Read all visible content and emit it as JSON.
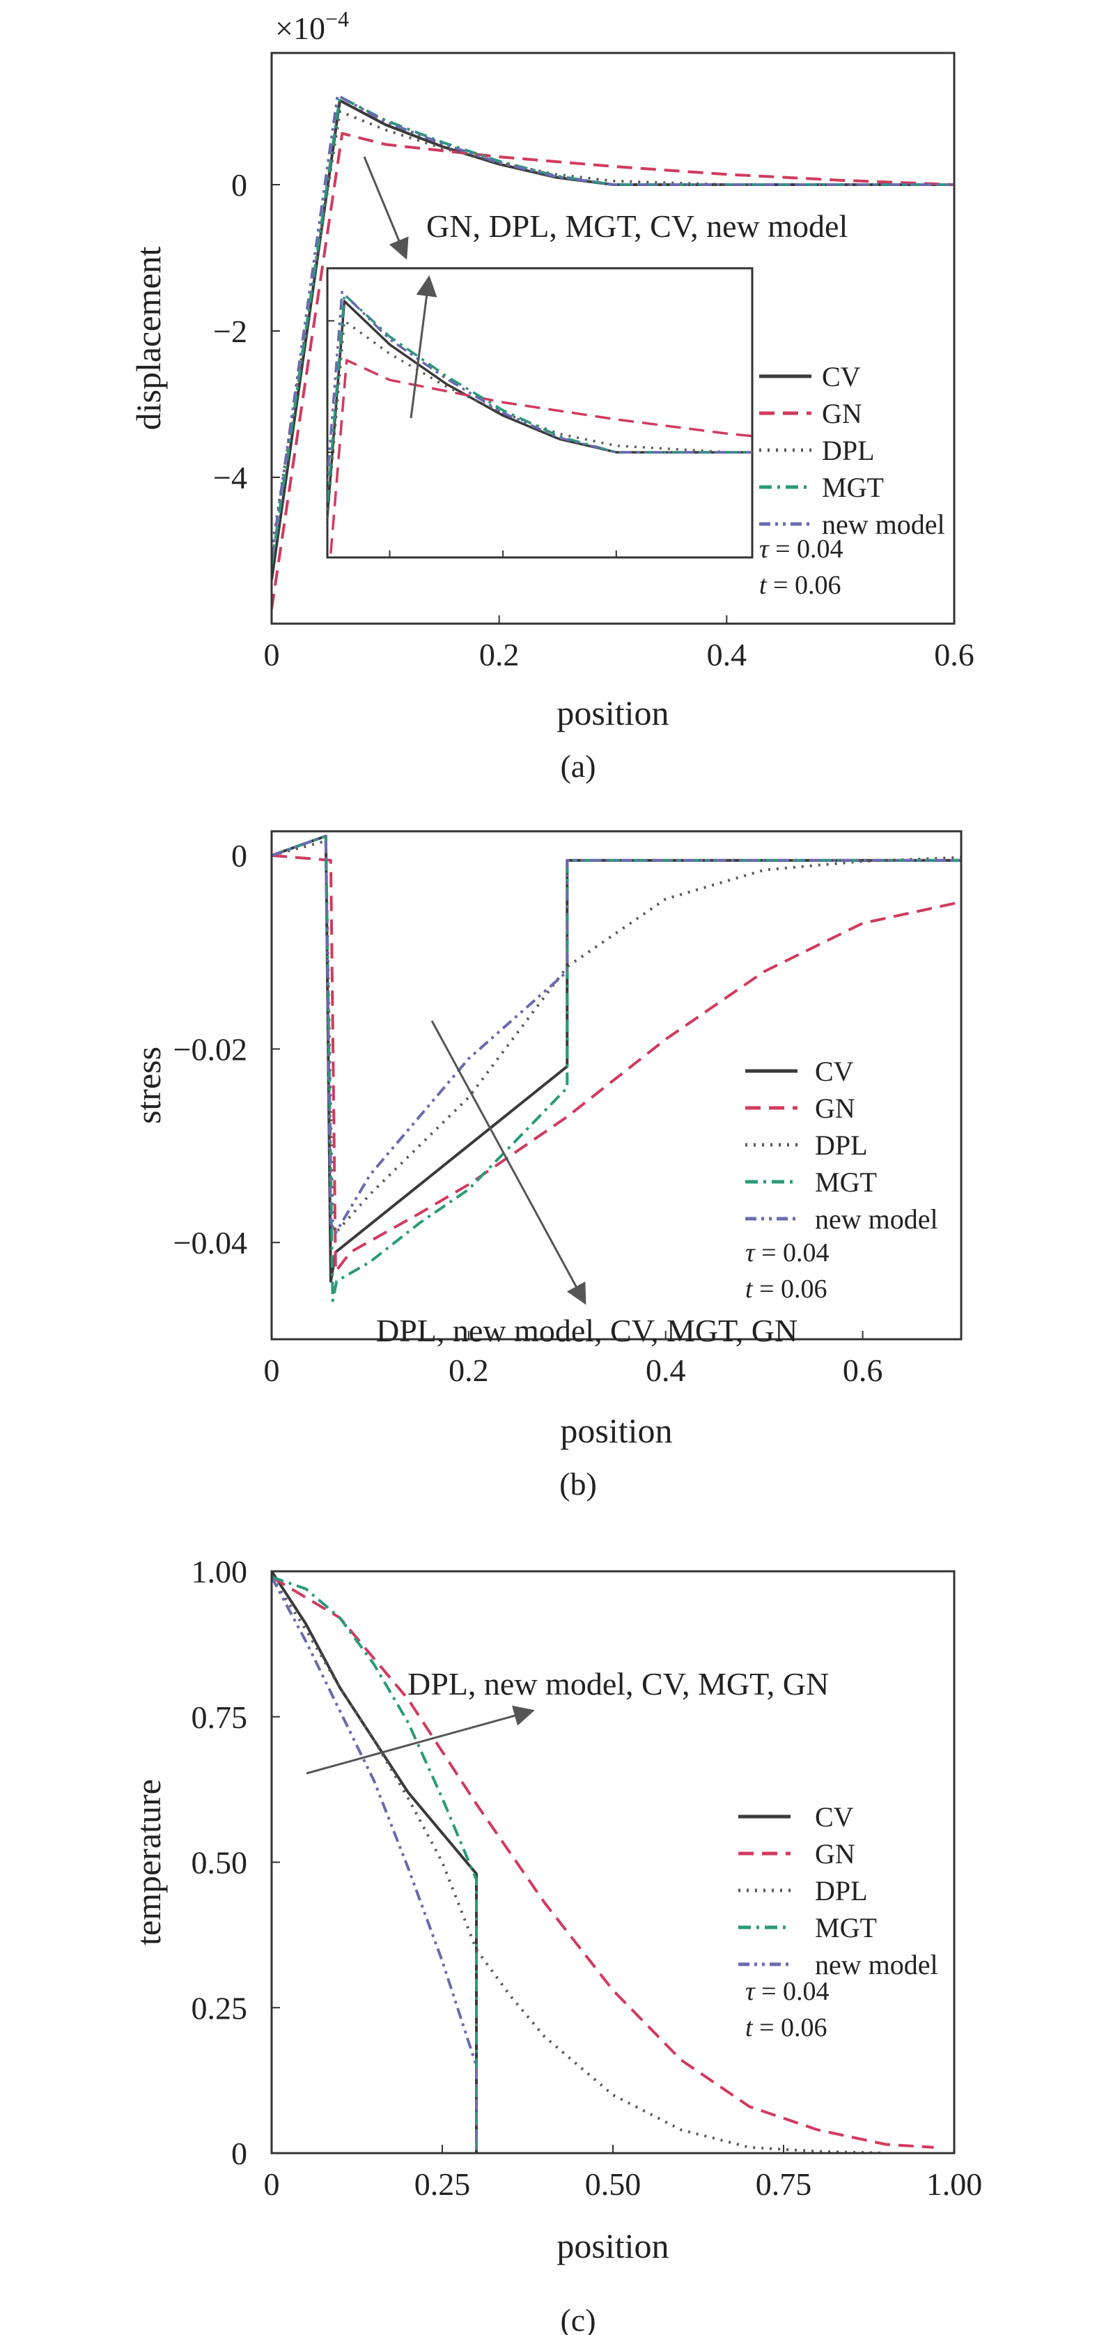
{
  "colors": {
    "CV": "#3a3a3a",
    "GN": "#d13a5e",
    "DPL": "#5a5a5a",
    "MGT": "#2a9a78",
    "new model": "#6a6ab0",
    "frame": "#333333",
    "arrow": "#555555"
  },
  "chart_data": [
    {
      "type": "line",
      "panel_label": "(a)",
      "xlabel": "position",
      "ylabel": "displacement",
      "y_multiplier_label": "×10",
      "y_multiplier_exponent": "−4",
      "xlim": [
        0,
        0.6
      ],
      "ylim": [
        -6.0,
        1.8
      ],
      "x_ticks": [
        0,
        0.2,
        0.4,
        0.6
      ],
      "x_tick_labels": [
        "0",
        "0.2",
        "0.4",
        "0.6"
      ],
      "y_ticks": [
        -4,
        -2,
        0
      ],
      "y_tick_labels": [
        "−4",
        "−2",
        "0"
      ],
      "legend": [
        "CV",
        "GN",
        "DPL",
        "MGT",
        "new model"
      ],
      "params": [
        "τ = 0.04",
        "t = 0.06"
      ],
      "annotation": "GN, DPL, MGT, CV, new model",
      "series": [
        {
          "name": "CV",
          "style": "solid",
          "x": [
            0,
            0.06,
            0.1,
            0.15,
            0.2,
            0.25,
            0.3,
            0.4,
            0.5,
            0.6
          ],
          "y": [
            -5.4,
            1.15,
            0.82,
            0.52,
            0.28,
            0.1,
            0.0,
            0.0,
            0.0,
            0.0
          ]
        },
        {
          "name": "GN",
          "style": "dash",
          "x": [
            0,
            0.062,
            0.1,
            0.2,
            0.3,
            0.4,
            0.5,
            0.6
          ],
          "y": [
            -5.8,
            0.7,
            0.55,
            0.38,
            0.25,
            0.14,
            0.06,
            0.0
          ]
        },
        {
          "name": "DPL",
          "style": "dot",
          "x": [
            0,
            0.06,
            0.1,
            0.15,
            0.2,
            0.25,
            0.3,
            0.4,
            0.5,
            0.6
          ],
          "y": [
            -5.0,
            1.0,
            0.75,
            0.5,
            0.3,
            0.14,
            0.05,
            0.0,
            0.0,
            0.0
          ]
        },
        {
          "name": "MGT",
          "style": "dashdot",
          "x": [
            0,
            0.06,
            0.1,
            0.15,
            0.2,
            0.25,
            0.3,
            0.4,
            0.5,
            0.6
          ],
          "y": [
            -5.2,
            1.2,
            0.88,
            0.58,
            0.32,
            0.12,
            0.0,
            0.0,
            0.0,
            0.0
          ]
        },
        {
          "name": "new model",
          "style": "dashdotdot",
          "x": [
            0,
            0.058,
            0.1,
            0.15,
            0.2,
            0.25,
            0.3,
            0.4,
            0.5,
            0.6
          ],
          "y": [
            -5.1,
            1.22,
            0.86,
            0.56,
            0.3,
            0.11,
            0.0,
            0.0,
            0.0,
            0.0
          ]
        }
      ]
    },
    {
      "type": "line",
      "panel_label": "(b)",
      "xlabel": "position",
      "ylabel": "stress",
      "xlim": [
        0,
        0.7
      ],
      "ylim": [
        -0.05,
        0.0025
      ],
      "x_ticks": [
        0,
        0.2,
        0.4,
        0.6
      ],
      "x_tick_labels": [
        "0",
        "0.2",
        "0.4",
        "0.6"
      ],
      "y_ticks": [
        -0.04,
        -0.02,
        0
      ],
      "y_tick_labels": [
        "−0.04",
        "−0.02",
        "0"
      ],
      "legend": [
        "CV",
        "GN",
        "DPL",
        "MGT",
        "new model"
      ],
      "params": [
        "τ = 0.04",
        "t = 0.06"
      ],
      "annotation": "DPL, new model, CV, MGT, GN",
      "series": [
        {
          "name": "CV",
          "style": "solid",
          "x": [
            0,
            0.055,
            0.06,
            0.065,
            0.3,
            0.3,
            0.4,
            0.5,
            0.6,
            0.7
          ],
          "y": [
            0,
            0.002,
            -0.044,
            -0.041,
            -0.0218,
            -0.0005,
            -0.0005,
            -0.0005,
            -0.0005,
            -0.0005
          ]
        },
        {
          "name": "GN",
          "style": "dash",
          "x": [
            0,
            0.06,
            0.065,
            0.08,
            0.15,
            0.2,
            0.3,
            0.4,
            0.5,
            0.6,
            0.7
          ],
          "y": [
            0,
            -0.0005,
            -0.043,
            -0.041,
            -0.037,
            -0.034,
            -0.027,
            -0.019,
            -0.012,
            -0.007,
            -0.0048
          ]
        },
        {
          "name": "DPL",
          "style": "dot",
          "x": [
            0,
            0.055,
            0.062,
            0.065,
            0.1,
            0.2,
            0.3,
            0.4,
            0.5,
            0.6,
            0.7
          ],
          "y": [
            0,
            0.0015,
            -0.038,
            -0.039,
            -0.035,
            -0.025,
            -0.0115,
            -0.0045,
            -0.0015,
            -0.0006,
            -0.0002
          ]
        },
        {
          "name": "MGT",
          "style": "dashdot",
          "x": [
            0,
            0.055,
            0.062,
            0.066,
            0.1,
            0.15,
            0.2,
            0.3,
            0.3,
            0.4,
            0.5,
            0.6,
            0.7
          ],
          "y": [
            0,
            0.002,
            -0.046,
            -0.044,
            -0.042,
            -0.038,
            -0.0345,
            -0.024,
            -0.0005,
            -0.0005,
            -0.0005,
            -0.0005,
            -0.0005
          ]
        },
        {
          "name": "new model",
          "style": "dashdotdot",
          "x": [
            0,
            0.055,
            0.06,
            0.065,
            0.1,
            0.2,
            0.3,
            0.3,
            0.4,
            0.5,
            0.6,
            0.7
          ],
          "y": [
            0,
            0.002,
            -0.038,
            -0.039,
            -0.033,
            -0.021,
            -0.012,
            -0.0005,
            -0.0005,
            -0.0005,
            -0.0005,
            -0.0005
          ]
        }
      ]
    },
    {
      "type": "line",
      "panel_label": "(c)",
      "xlabel": "position",
      "ylabel": "temperature",
      "xlim": [
        0,
        1.0
      ],
      "ylim": [
        0,
        1.0
      ],
      "x_ticks": [
        0,
        0.25,
        0.5,
        0.75,
        1.0
      ],
      "x_tick_labels": [
        "0",
        "0.25",
        "0.50",
        "0.75",
        "1.00"
      ],
      "y_ticks": [
        0,
        0.25,
        0.5,
        0.75,
        1.0
      ],
      "y_tick_labels": [
        "0",
        "0.25",
        "0.50",
        "0.75",
        "1.00"
      ],
      "legend": [
        "CV",
        "GN",
        "DPL",
        "MGT",
        "new model"
      ],
      "params": [
        "τ = 0.04",
        "t = 0.06"
      ],
      "annotation": "DPL, new model, CV, MGT, GN",
      "series": [
        {
          "name": "CV",
          "style": "solid",
          "x": [
            0,
            0.05,
            0.1,
            0.15,
            0.2,
            0.25,
            0.3,
            0.3
          ],
          "y": [
            1.0,
            0.91,
            0.8,
            0.71,
            0.62,
            0.55,
            0.48,
            0
          ]
        },
        {
          "name": "GN",
          "style": "dash",
          "x": [
            0,
            0.1,
            0.2,
            0.3,
            0.4,
            0.5,
            0.6,
            0.7,
            0.8,
            0.9,
            0.97
          ],
          "y": [
            0.99,
            0.92,
            0.78,
            0.6,
            0.43,
            0.28,
            0.16,
            0.08,
            0.04,
            0.015,
            0.01
          ]
        },
        {
          "name": "DPL",
          "style": "dot",
          "x": [
            0,
            0.05,
            0.1,
            0.15,
            0.2,
            0.25,
            0.3,
            0.35,
            0.4,
            0.5,
            0.6,
            0.7,
            0.8,
            0.9
          ],
          "y": [
            0.99,
            0.9,
            0.8,
            0.71,
            0.61,
            0.5,
            0.35,
            0.27,
            0.2,
            0.1,
            0.04,
            0.01,
            0.003,
            0.0
          ]
        },
        {
          "name": "MGT",
          "style": "dashdot",
          "x": [
            0,
            0.05,
            0.1,
            0.15,
            0.2,
            0.25,
            0.3,
            0.3
          ],
          "y": [
            0.99,
            0.97,
            0.92,
            0.84,
            0.74,
            0.61,
            0.47,
            0
          ]
        },
        {
          "name": "new model",
          "style": "dashdotdot",
          "x": [
            0,
            0.05,
            0.1,
            0.15,
            0.2,
            0.25,
            0.3,
            0.3
          ],
          "y": [
            0.99,
            0.88,
            0.76,
            0.64,
            0.49,
            0.33,
            0.15,
            0
          ]
        }
      ]
    }
  ]
}
